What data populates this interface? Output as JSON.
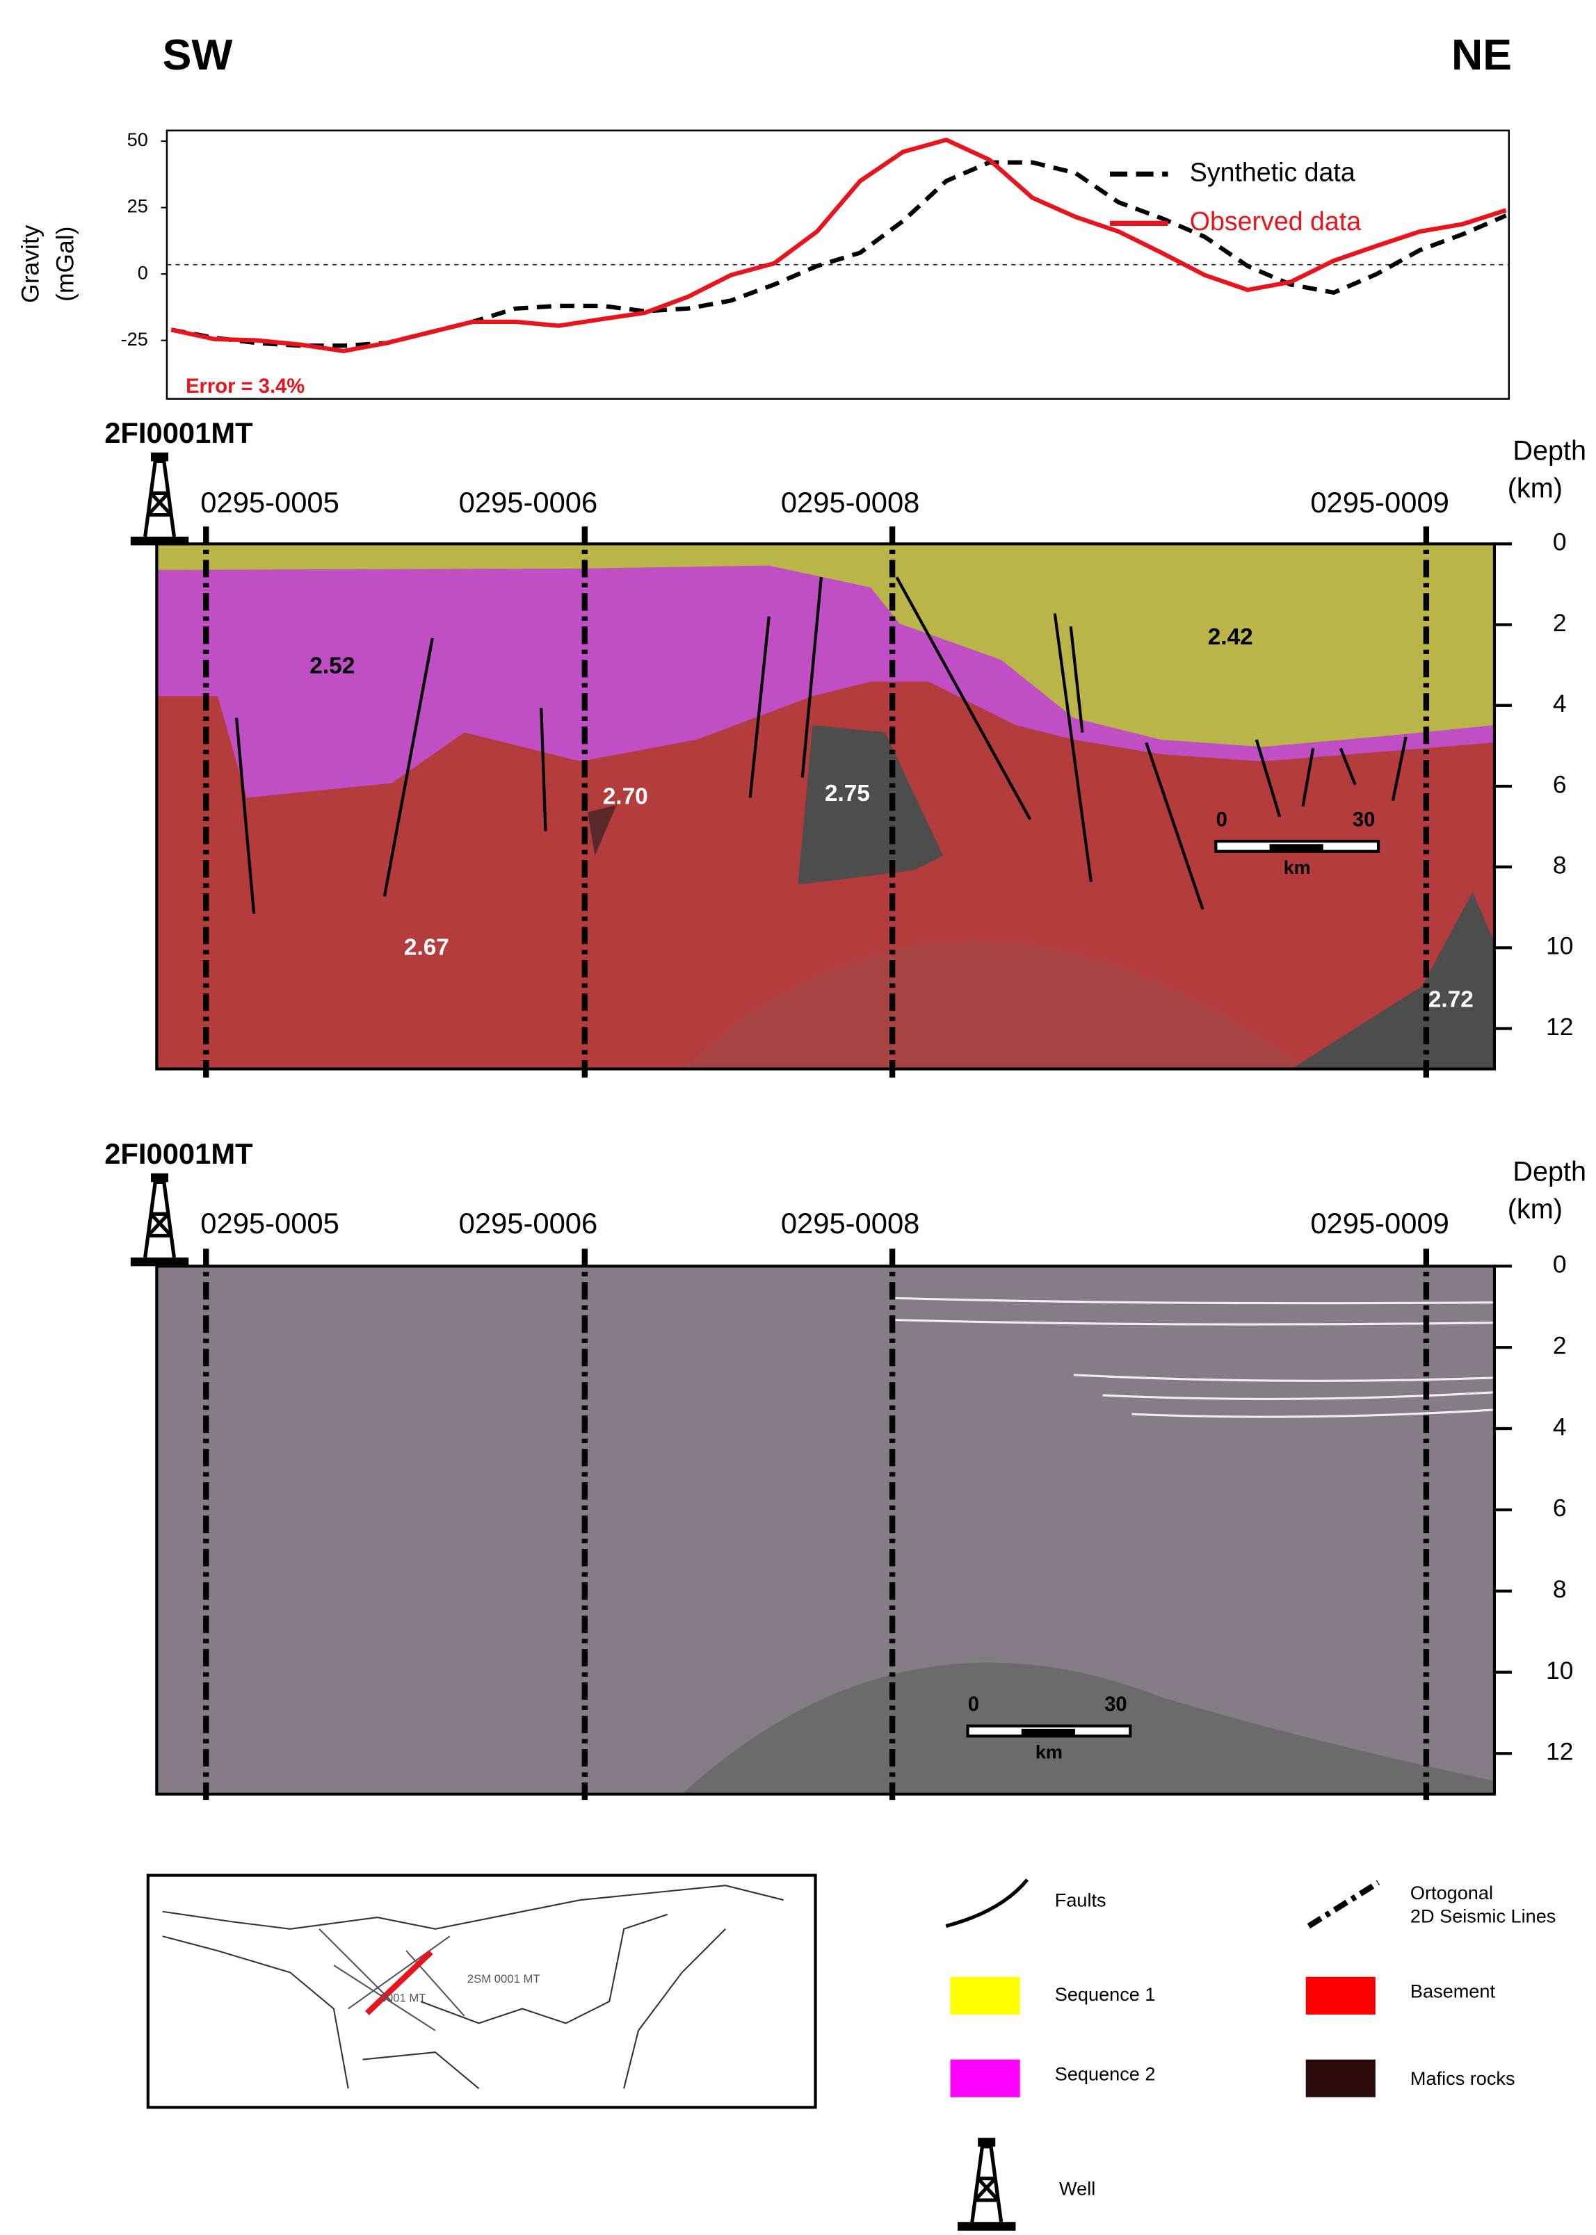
{
  "header": {
    "left": "SW",
    "right": "NE"
  },
  "chart_data": {
    "type": "line",
    "ylabel": "Gravity",
    "ylabel_unit": "(mGal)",
    "ylim": [
      -47,
      54
    ],
    "yticks": [
      -25,
      0,
      25,
      50
    ],
    "reference_line": 3.5,
    "annotation": "Error = 3.4%",
    "legend": "upper right",
    "series": [
      {
        "name": "Synthetic data",
        "color": "#000000",
        "dash": true,
        "values": [
          -21,
          -24,
          -26,
          -27,
          -27,
          -26,
          -22,
          -18,
          -13,
          -12,
          -12,
          -14,
          -13,
          -10,
          -4,
          3,
          8,
          20,
          35,
          42,
          42,
          38,
          27,
          21,
          14,
          3,
          -4,
          -7,
          0,
          9,
          15,
          22
        ]
      },
      {
        "name": "Observed data",
        "color": "#e8141b",
        "dash": false,
        "values": [
          -21,
          -24.5,
          -25,
          -26.6,
          -29,
          -26,
          -22,
          -18,
          -18,
          -19.5,
          -17,
          -14.6,
          -8.6,
          -0.4,
          4,
          16,
          35,
          46,
          50.5,
          43,
          28.7,
          21.5,
          16,
          8,
          -0.4,
          -6,
          -3,
          5,
          10.6,
          16,
          18.8,
          24
        ]
      }
    ]
  },
  "sections": [
    {
      "title": "2FI0001MT",
      "lines": [
        "0295-0005",
        "0295-0006",
        "0295-0008",
        "0295-0009"
      ],
      "depth_label": [
        "Depth",
        "(km)"
      ],
      "depth_lim": [
        0,
        13
      ],
      "depth_ticks": [
        0,
        2,
        4,
        6,
        8,
        10,
        12
      ],
      "density_labels": [
        "2.52",
        "2.70",
        "2.75",
        "2.42",
        "2.67",
        "2.72"
      ],
      "scale": [
        "0",
        "30",
        "km"
      ]
    },
    {
      "title": "2FI0001MT",
      "lines": [
        "0295-0005",
        "0295-0006",
        "0295-0008",
        "0295-0009"
      ],
      "depth_label": [
        "Depth",
        "(km)"
      ],
      "depth_lim": [
        0,
        13
      ],
      "depth_ticks": [
        0,
        2,
        4,
        6,
        8,
        10,
        12
      ],
      "scale": [
        "0",
        "30",
        "km"
      ]
    }
  ],
  "map": {
    "labels": [
      "0001 MT",
      "2SM 0001 MT"
    ]
  },
  "legend": {
    "items": [
      {
        "label": [
          "Faults"
        ]
      },
      {
        "label": [
          "Ortogonal",
          "2D Seismic Lines"
        ]
      },
      {
        "label": [
          "Sequence 1"
        ]
      },
      {
        "label": [
          "Basement"
        ]
      },
      {
        "label": [
          "Sequence 2"
        ]
      },
      {
        "label": [
          "Mafics rocks"
        ]
      },
      {
        "label": [
          "Well"
        ]
      }
    ]
  }
}
